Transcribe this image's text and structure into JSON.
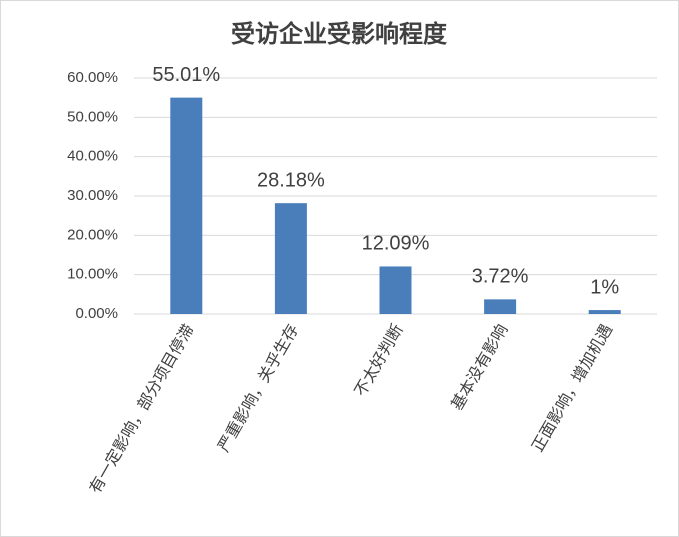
{
  "chart_data": {
    "type": "bar",
    "title": "受访企业受影响程度",
    "categories": [
      "有一定影响，部分项目停滞",
      "严重影响，关乎生存",
      "不太好判断",
      "基本没有影响",
      "正面影响，增加机遇"
    ],
    "values": [
      55.01,
      28.18,
      12.09,
      3.72,
      1
    ],
    "value_labels": [
      "55.01%",
      "28.18%",
      "12.09%",
      "3.72%",
      "1%"
    ],
    "color": "#4a7ebb",
    "ylim": [
      0,
      60
    ],
    "yticks": [
      {
        "value": 0,
        "label": "0.00%"
      },
      {
        "value": 10,
        "label": "10.00%"
      },
      {
        "value": 20,
        "label": "20.00%"
      },
      {
        "value": 30,
        "label": "30.00%"
      },
      {
        "value": 40,
        "label": "40.00%"
      },
      {
        "value": 50,
        "label": "50.00%"
      },
      {
        "value": 60,
        "label": "60.00%"
      }
    ],
    "grid": true
  }
}
